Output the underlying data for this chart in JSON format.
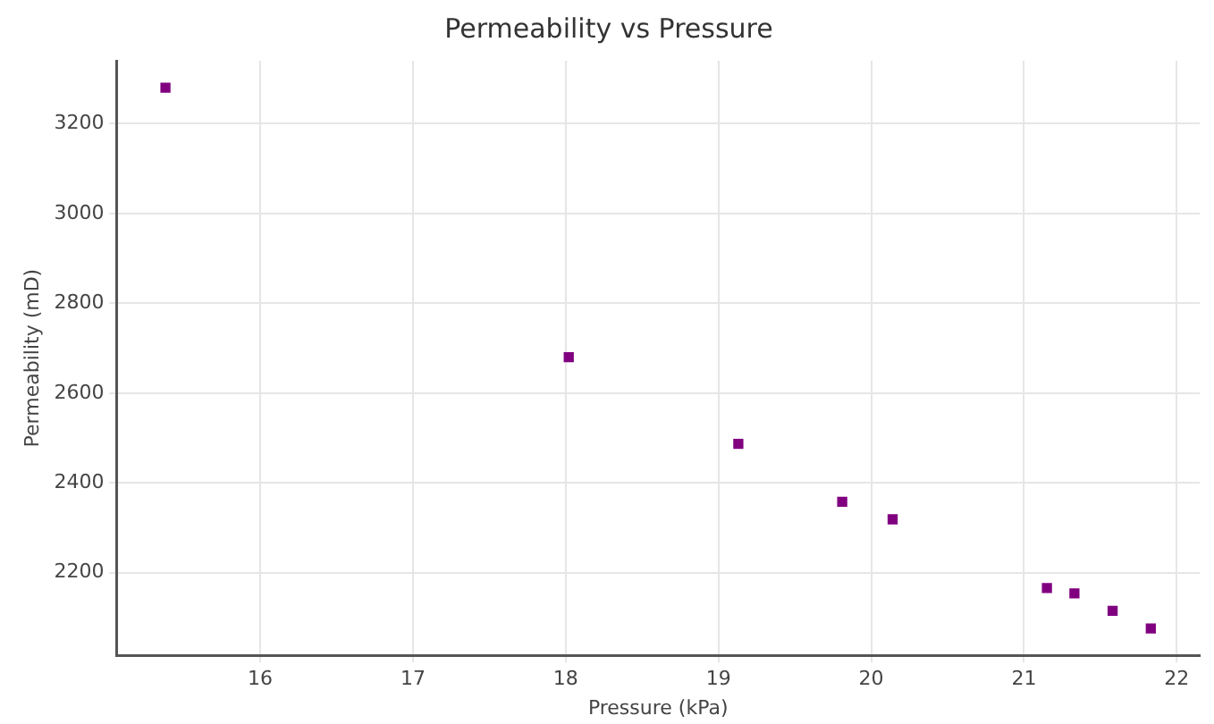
{
  "chart_data": {
    "type": "scatter",
    "title": "Permeability vs Pressure",
    "xlabel": "Pressure (kPa)",
    "ylabel": "Permeability (mD)",
    "x": [
      15.38,
      18.02,
      19.13,
      19.81,
      20.14,
      21.15,
      21.33,
      21.58,
      21.83
    ],
    "series": [
      {
        "color": "#800080",
        "values": [
          3280,
          2680,
          2487,
          2358,
          2319,
          2166,
          2154,
          2115,
          2076
        ]
      }
    ],
    "xlim": [
      15.06,
      22.15
    ],
    "xticks": [
      16,
      17,
      18,
      19,
      20,
      21,
      22
    ],
    "ylim": [
      2016,
      3340
    ],
    "yticks": [
      2200,
      2400,
      2600,
      2800,
      3000,
      3200
    ],
    "grid": true,
    "marker": "square",
    "legend": false
  }
}
